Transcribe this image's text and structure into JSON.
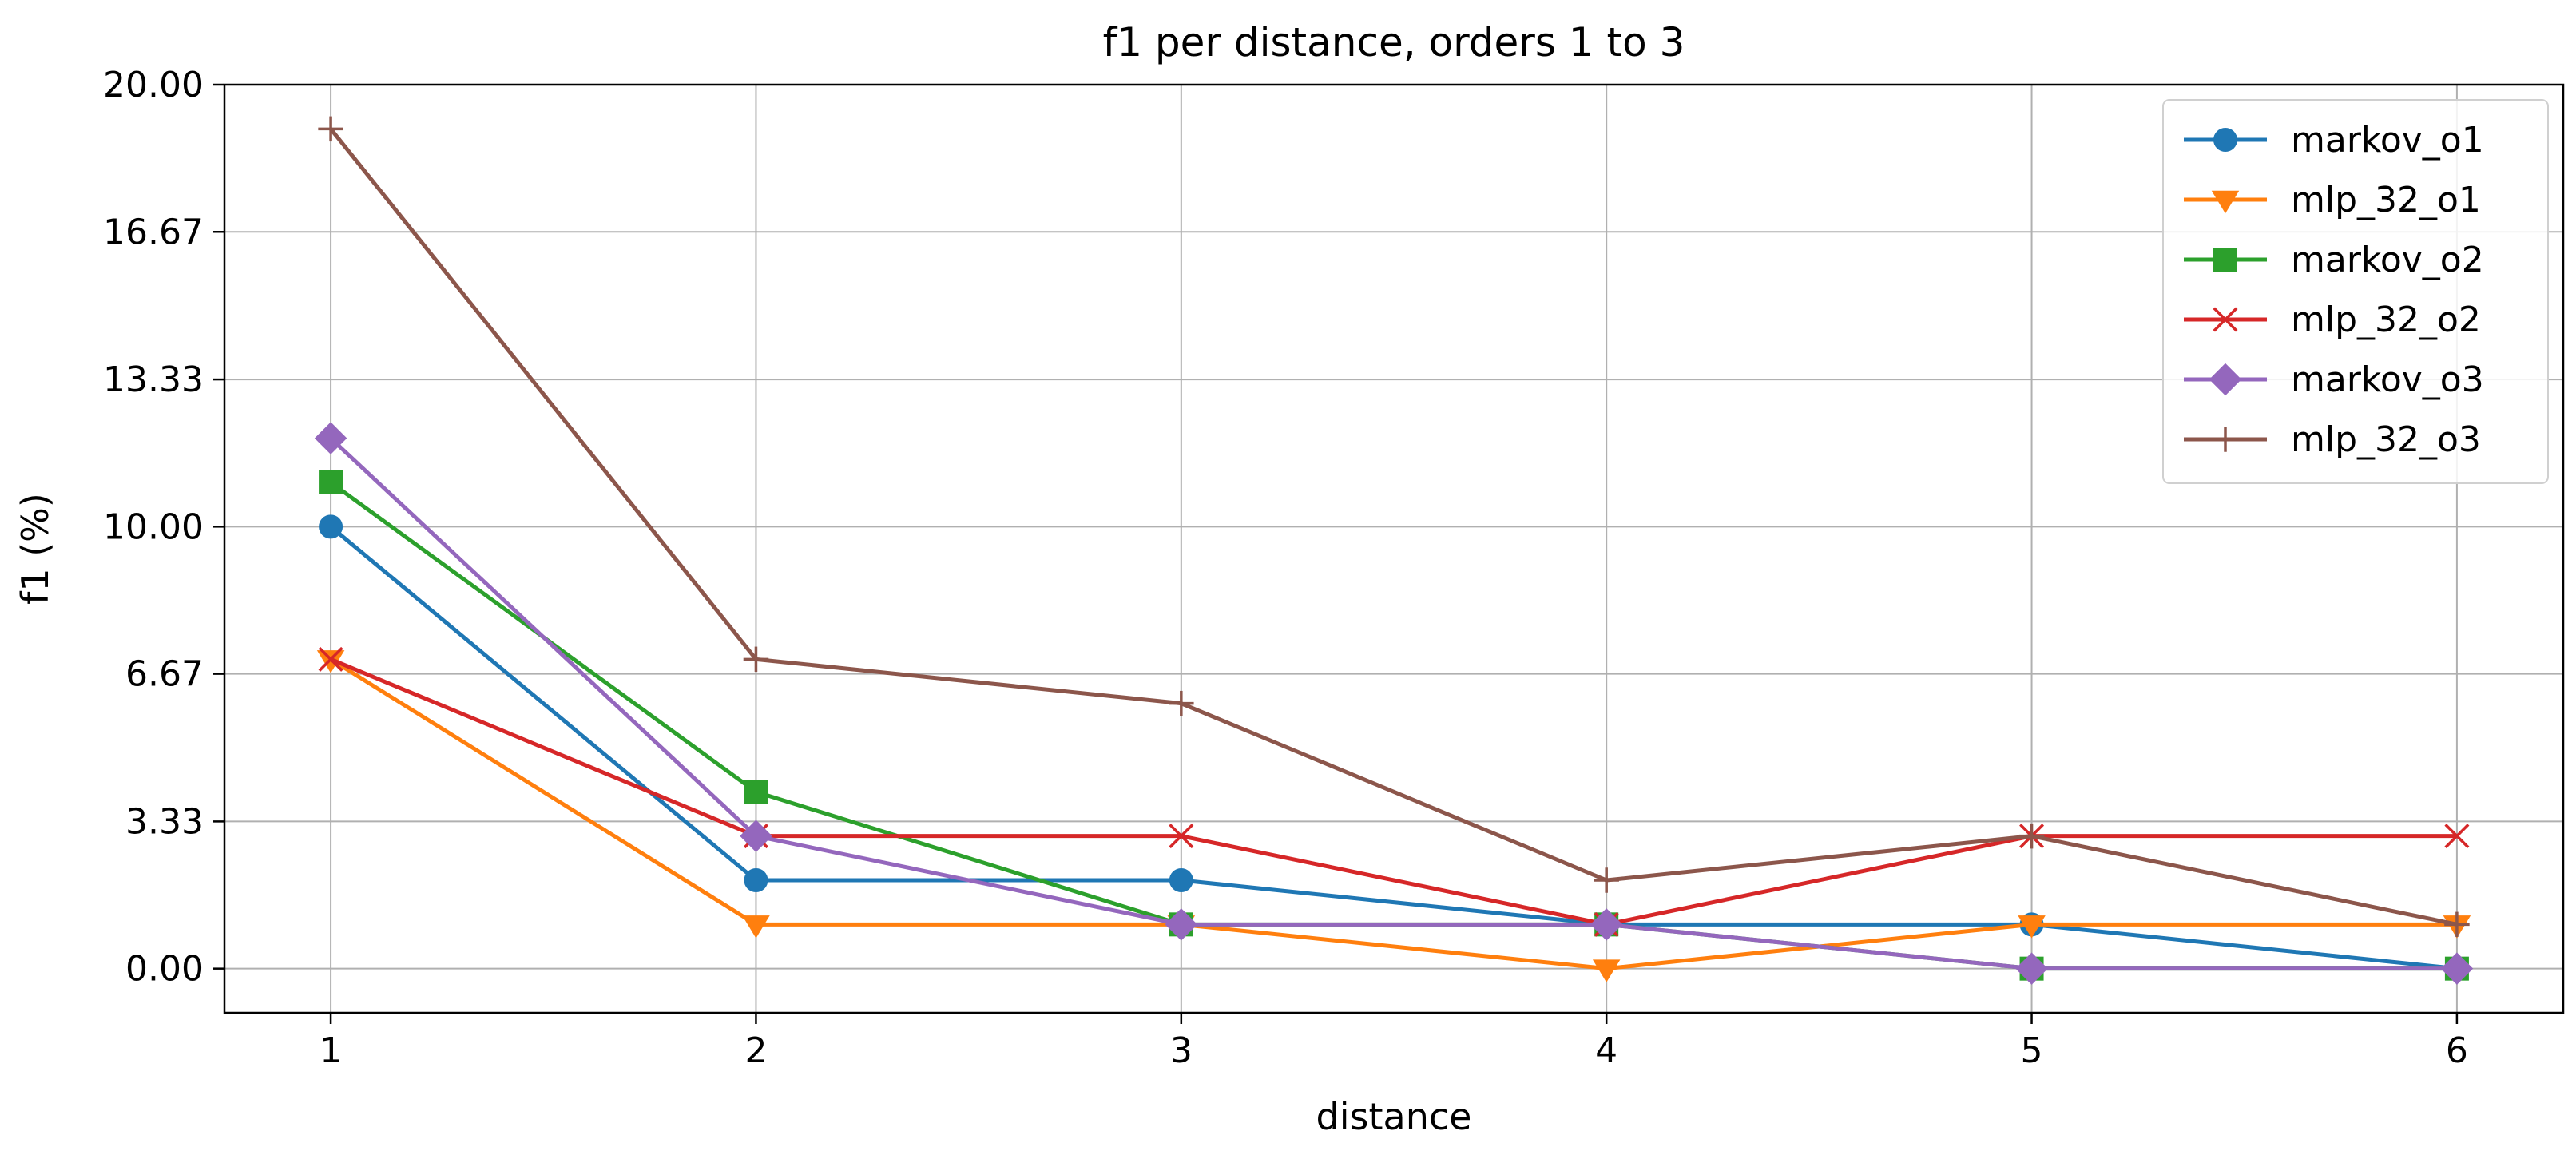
{
  "chart_data": {
    "type": "line",
    "title": "f1 per distance, orders 1 to 3",
    "xlabel": "distance",
    "ylabel": "f1 (%)",
    "x": [
      1,
      2,
      3,
      4,
      5,
      6
    ],
    "xticks": [
      "1",
      "2",
      "3",
      "4",
      "5",
      "6"
    ],
    "yticks": [
      "0.00",
      "3.33",
      "6.67",
      "10.00",
      "13.33",
      "16.67",
      "20.00"
    ],
    "ylim": [
      -1,
      20
    ],
    "xlim": [
      0.75,
      6.25
    ],
    "grid": true,
    "legend_position": "top-right",
    "series": [
      {
        "name": "markov_o1",
        "color": "#1f77b4",
        "marker": "circle",
        "values": [
          10,
          2,
          2,
          1,
          1,
          0
        ]
      },
      {
        "name": "mlp_32_o1",
        "color": "#ff7f0e",
        "marker": "triangle-down",
        "values": [
          7,
          1,
          1,
          0,
          1,
          1
        ]
      },
      {
        "name": "markov_o2",
        "color": "#2ca02c",
        "marker": "square",
        "values": [
          11,
          4,
          1,
          1,
          0,
          0
        ]
      },
      {
        "name": "mlp_32_o2",
        "color": "#d62728",
        "marker": "x",
        "values": [
          7,
          3,
          3,
          1,
          3,
          3
        ]
      },
      {
        "name": "markov_o3",
        "color": "#9467bd",
        "marker": "diamond",
        "values": [
          12,
          3,
          1,
          1,
          0,
          0
        ]
      },
      {
        "name": "mlp_32_o3",
        "color": "#8c564b",
        "marker": "plus",
        "values": [
          19,
          7,
          6,
          2,
          3,
          1
        ]
      }
    ]
  }
}
